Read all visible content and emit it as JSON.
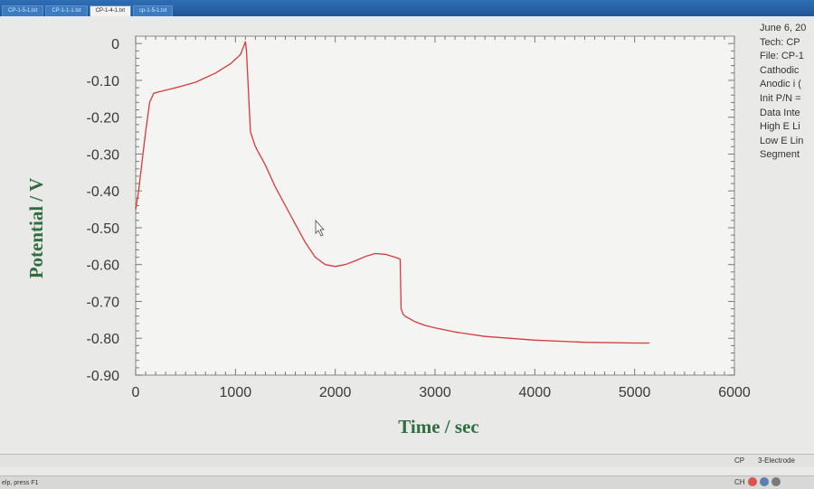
{
  "tabs": [
    {
      "label": "CP-1-5-1.txt",
      "active": false
    },
    {
      "label": "CP-1-1-1.txt",
      "active": false
    },
    {
      "label": "CP-1-4-1.txt",
      "active": true
    },
    {
      "label": "cp-1-5-1.txt",
      "active": false
    }
  ],
  "info_panel": {
    "lines_top": [
      "June 6, 20",
      "Tech: CP",
      "File: CP-1"
    ],
    "lines_params": [
      "Cathodic",
      "Anodic i (",
      "Init P/N =",
      "Data Inte",
      "High E Li",
      "Low E Lin",
      "Segment"
    ]
  },
  "status": {
    "mode": "CP",
    "electrode": "3-Electrode",
    "help": "elp, press F1",
    "tray_lang": "CH"
  },
  "colors": {
    "curve": "#d63a3a",
    "axis_label": "#2f6f3f",
    "plot_bg": "#f4f4f2"
  },
  "chart_data": {
    "type": "line",
    "title": "",
    "xlabel": "Time / sec",
    "ylabel": "Potential / V",
    "xlim": [
      0,
      6000
    ],
    "ylim": [
      -0.9,
      0.02
    ],
    "x_ticks": [
      0,
      1000,
      2000,
      3000,
      4000,
      5000,
      6000
    ],
    "x_tick_labels": [
      "0",
      "1000",
      "2000",
      "3000",
      "4000",
      "5000",
      "6000"
    ],
    "y_ticks": [
      0,
      -0.1,
      -0.2,
      -0.3,
      -0.4,
      -0.5,
      -0.6,
      -0.7,
      -0.8,
      -0.9
    ],
    "y_tick_labels": [
      "0",
      "-0.10",
      "-0.20",
      "-0.30",
      "-0.40",
      "-0.50",
      "-0.60",
      "-0.70",
      "-0.80",
      "-0.90"
    ],
    "series": [
      {
        "x": [
          0,
          30,
          60,
          100,
          140,
          180,
          250,
          400,
          600,
          800,
          950,
          1050,
          1100,
          1110,
          1150,
          1200,
          1300,
          1400,
          1500,
          1600,
          1700,
          1800,
          1900,
          2000,
          2100,
          2200,
          2300,
          2400,
          2500,
          2600,
          2650,
          2660,
          2680,
          2700,
          2800,
          2900,
          3000,
          3200,
          3500,
          4000,
          4500,
          5000,
          5150
        ],
        "y": [
          -0.45,
          -0.4,
          -0.33,
          -0.24,
          -0.16,
          -0.135,
          -0.13,
          -0.12,
          -0.105,
          -0.08,
          -0.055,
          -0.03,
          0.005,
          -0.02,
          -0.24,
          -0.28,
          -0.33,
          -0.39,
          -0.44,
          -0.49,
          -0.54,
          -0.58,
          -0.6,
          -0.605,
          -0.6,
          -0.59,
          -0.578,
          -0.57,
          -0.572,
          -0.58,
          -0.585,
          -0.72,
          -0.735,
          -0.74,
          -0.755,
          -0.765,
          -0.772,
          -0.783,
          -0.795,
          -0.805,
          -0.811,
          -0.813,
          -0.813
        ]
      }
    ]
  }
}
